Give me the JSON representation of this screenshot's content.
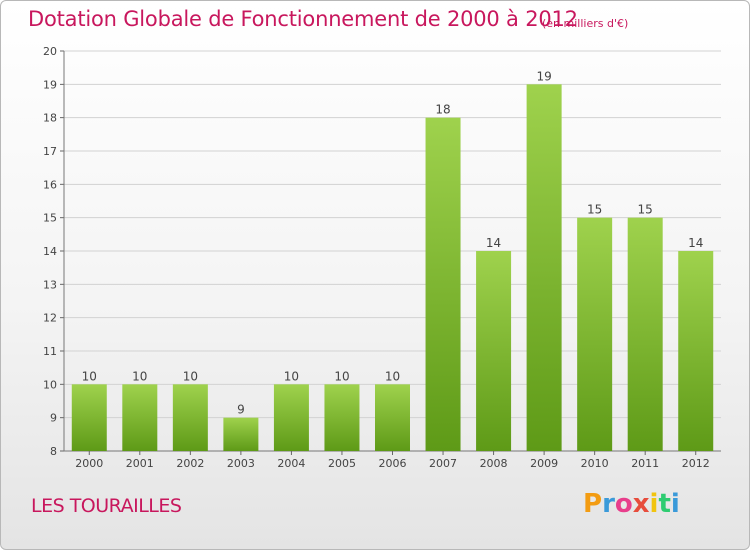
{
  "title": "Dotation Globale de Fonctionnement de 2000 à 2012",
  "unit_note": "(en milliers d'€)",
  "commune": "LES TOURAILLES",
  "logo": {
    "letters": [
      "P",
      "r",
      "o",
      "x",
      "i",
      "t",
      "i"
    ],
    "colors": [
      "#f39c12",
      "#3a9ad9",
      "#e83e8c",
      "#e74c3c",
      "#f1c40f",
      "#2ecc71",
      "#3a9ad9"
    ]
  },
  "colors": {
    "bar_top": "#9fd24d",
    "bar_bottom": "#5e9a17",
    "title": "#c8175d"
  },
  "chart_data": {
    "type": "bar",
    "title": "Dotation Globale de Fonctionnement de 2000 à 2012",
    "xlabel": "",
    "ylabel": "",
    "categories": [
      "2000",
      "2001",
      "2002",
      "2003",
      "2004",
      "2005",
      "2006",
      "2007",
      "2008",
      "2009",
      "2010",
      "2011",
      "2012"
    ],
    "values": [
      10,
      10,
      10,
      9,
      10,
      10,
      10,
      18,
      14,
      19,
      15,
      15,
      14
    ],
    "ylim": [
      8,
      20
    ],
    "yticks": [
      8,
      9,
      10,
      11,
      12,
      13,
      14,
      15,
      16,
      17,
      18,
      19,
      20
    ],
    "grid": "horizontal",
    "legend": "none"
  }
}
